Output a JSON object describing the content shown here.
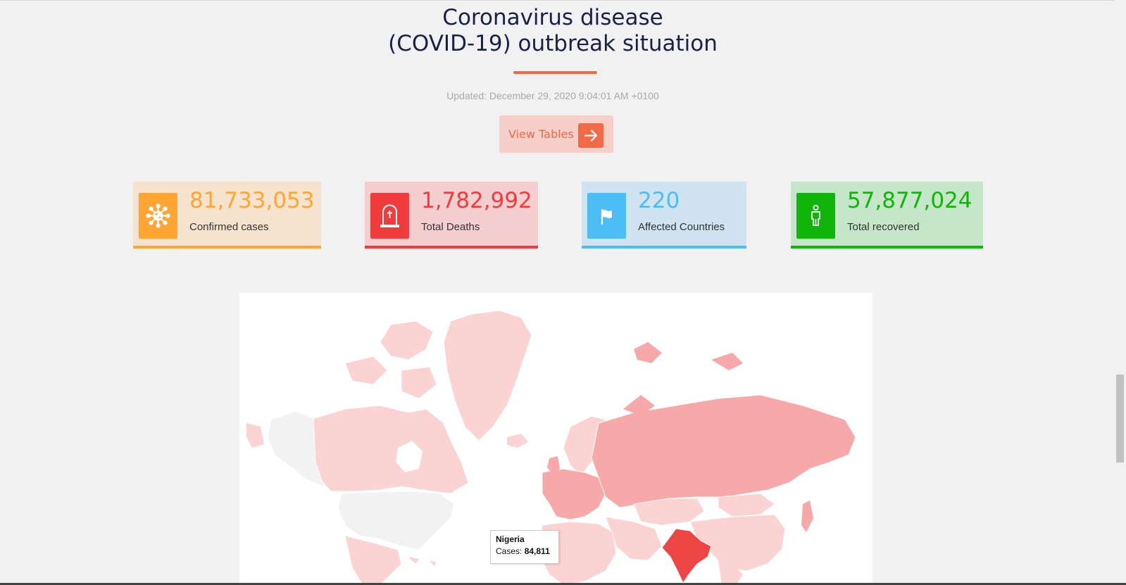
{
  "header": {
    "title_line1": "Coronavirus disease",
    "title_line2": "(COVID-19) outbreak situation",
    "updated": "Updated: December 29, 2020 9:04:01 AM +0100",
    "view_tables_label": "View Tables",
    "accent": "#f26a45"
  },
  "stats": [
    {
      "value": "81,733,053",
      "label": "Confirmed cases",
      "icon": "virus-icon",
      "color": "#fea534",
      "bg": "#f5e3ce"
    },
    {
      "value": "1,782,992",
      "label": "Total Deaths",
      "icon": "tombstone-icon",
      "color": "#f03c3c",
      "bg": "#f5cfd0"
    },
    {
      "value": "220",
      "label": "Affected Countries",
      "icon": "flag-icon",
      "color": "#4dbdf5",
      "bg": "#cfe3f1"
    },
    {
      "value": "57,877,024",
      "label": "Total recovered",
      "icon": "person-icon",
      "color": "#10b50a",
      "bg": "#c5e6c9"
    }
  ],
  "map": {
    "tooltip_country": "Nigeria",
    "tooltip_label": "Cases:",
    "tooltip_value": "84,811"
  }
}
